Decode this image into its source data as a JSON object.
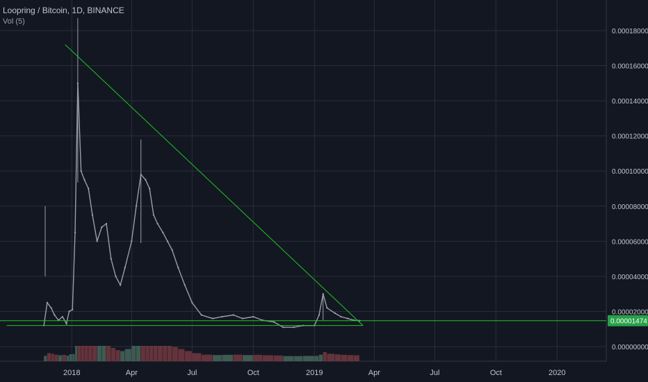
{
  "header": {
    "title": "Loopring / Bitcoin, 1D, BINANCE",
    "volume_label": "Vol (5)"
  },
  "colors": {
    "background": "#131722",
    "grid": "#2a2e39",
    "candle": "#9b9ea6",
    "trendline": "#21c521",
    "price_badge": "#27a149",
    "volume_up": "#4a6b5f",
    "volume_down": "#7a3b42"
  },
  "chart_data": {
    "type": "line",
    "title": "Loopring / Bitcoin, 1D, BINANCE",
    "xlabel": "",
    "ylabel": "",
    "x_tick_labels": [
      "2018",
      "Apr",
      "Jul",
      "Oct",
      "2019",
      "Apr",
      "Jul",
      "Oct",
      "2020"
    ],
    "y_tick_labels": [
      "0.00018000",
      "0.00016000",
      "0.00014000",
      "0.00012000",
      "0.00010000",
      "0.00008000",
      "0.00006000",
      "0.00004000",
      "0.00002000",
      "0.00000000"
    ],
    "ylim": [
      0,
      0.00019
    ],
    "xlim": [
      "2017-09-15",
      "2020-03-15"
    ],
    "grid": true,
    "last_price": "0.00001474",
    "series": [
      {
        "x": [
          "2017-11-20",
          "2017-11-25",
          "2017-12-01",
          "2017-12-06",
          "2017-12-12",
          "2017-12-18",
          "2017-12-24",
          "2017-12-28",
          "2018-01-02",
          "2018-01-06",
          "2018-01-10",
          "2018-01-15",
          "2018-01-20",
          "2018-01-26",
          "2018-02-01",
          "2018-02-08",
          "2018-02-15",
          "2018-02-22",
          "2018-03-01",
          "2018-03-08",
          "2018-03-15",
          "2018-03-22",
          "2018-04-01",
          "2018-04-08",
          "2018-04-15",
          "2018-04-22",
          "2018-04-28",
          "2018-05-04",
          "2018-05-10",
          "2018-05-18",
          "2018-05-25",
          "2018-06-01",
          "2018-06-10",
          "2018-06-20",
          "2018-07-01",
          "2018-07-15",
          "2018-08-01",
          "2018-08-15",
          "2018-09-01",
          "2018-09-15",
          "2018-10-01",
          "2018-10-15",
          "2018-11-01",
          "2018-11-15",
          "2018-12-01",
          "2018-12-15",
          "2019-01-01",
          "2019-01-08",
          "2019-01-14",
          "2019-01-20",
          "2019-02-01",
          "2019-02-10",
          "2019-02-20",
          "2019-03-01",
          "2019-03-10"
        ],
        "values": [
          1.2e-05,
          2.5e-05,
          2.2e-05,
          1.8e-05,
          1.5e-05,
          1.7e-05,
          1.3e-05,
          2e-05,
          2.1e-05,
          6.5e-05,
          0.00015,
          0.0001,
          9.5e-05,
          9e-05,
          7.5e-05,
          6e-05,
          6.8e-05,
          7e-05,
          5e-05,
          4e-05,
          3.5e-05,
          4.5e-05,
          6e-05,
          8e-05,
          9.8e-05,
          9.5e-05,
          9e-05,
          7.5e-05,
          7e-05,
          6.5e-05,
          6e-05,
          5.5e-05,
          4.5e-05,
          3.5e-05,
          2.5e-05,
          1.8e-05,
          1.6e-05,
          1.7e-05,
          1.8e-05,
          1.6e-05,
          1.7e-05,
          1.5e-05,
          1.4e-05,
          1.1e-05,
          1.1e-05,
          1.2e-05,
          1.2e-05,
          1.8e-05,
          3e-05,
          2.2e-05,
          1.9e-05,
          1.7e-05,
          1.6e-05,
          1.5e-05,
          1.474e-05
        ]
      }
    ],
    "lines": [
      {
        "x": [
          "2017-12-22",
          "2019-03-15"
        ],
        "values": [
          0.000172,
          1.2e-05
        ]
      },
      {
        "x": [
          "2017-09-25",
          "2019-03-15"
        ],
        "values": [
          1.2e-05,
          1.2e-05
        ]
      },
      {
        "x": [
          "2017-09-15",
          "2020-03-15"
        ],
        "values": [
          1.474e-05,
          1.474e-05
        ]
      }
    ]
  }
}
